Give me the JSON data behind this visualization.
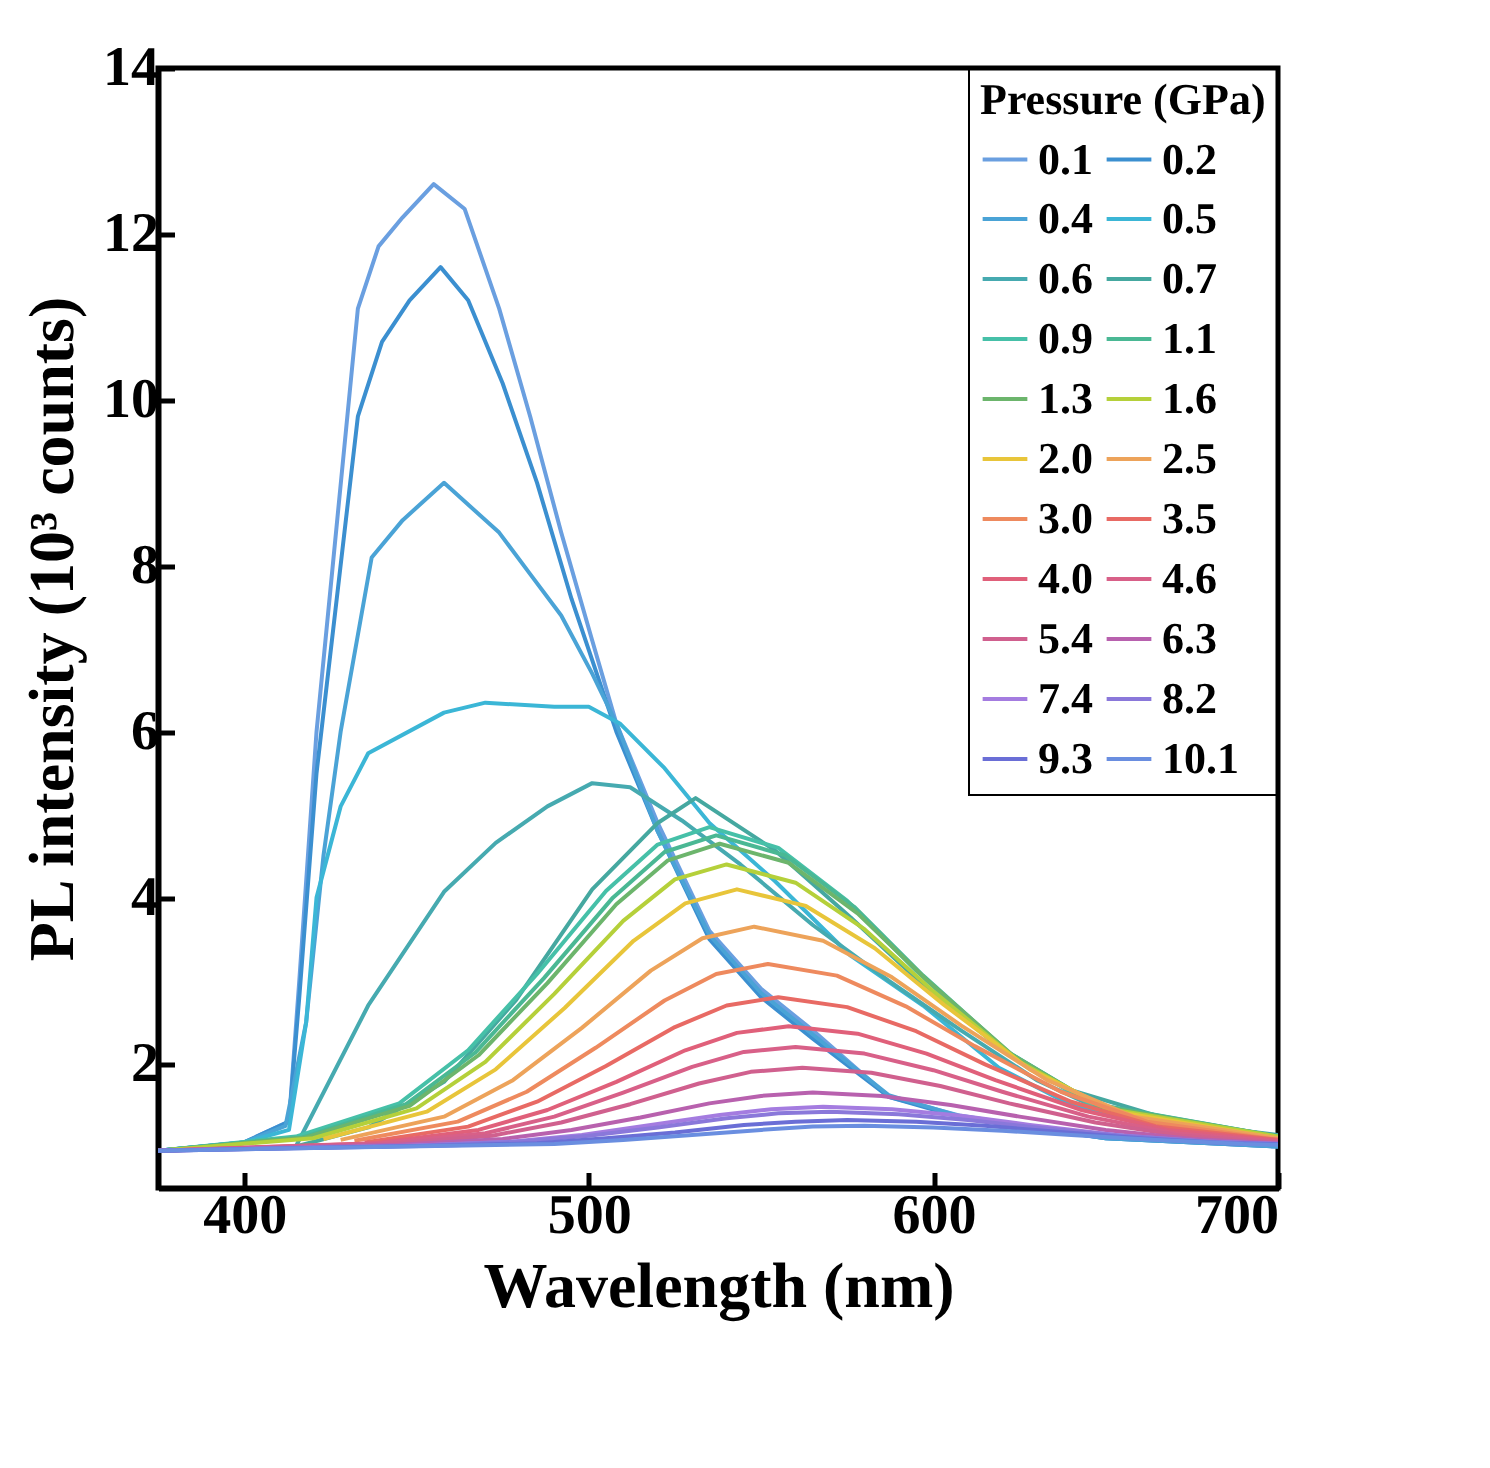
{
  "chart_data": {
    "type": "line",
    "xlabel": "Wavelength (nm)",
    "ylabel": "PL intensity (10³ counts)",
    "legend_title": "Pressure (GPa)",
    "legend": "top right",
    "grid": false,
    "xlim": [
      375,
      700
    ],
    "xticks": [
      400,
      500,
      600,
      700
    ],
    "ylim": [
      0.5,
      14
    ],
    "yticks": [
      2,
      4,
      6,
      8,
      10,
      12,
      14
    ],
    "series": [
      {
        "name": "0.1",
        "color": "#6a9fe0",
        "x": [
          375,
          400,
          413,
          416,
          421,
          433,
          439,
          446,
          455,
          464,
          474,
          483,
          492,
          501,
          508,
          520,
          535,
          550,
          565,
          587,
          608,
          650,
          700
        ],
        "values": [
          0.95,
          1.05,
          1.3,
          3.0,
          6.0,
          11.1,
          11.85,
          12.2,
          12.6,
          12.3,
          11.1,
          9.8,
          8.4,
          7.1,
          6.1,
          4.9,
          3.6,
          2.9,
          2.4,
          1.6,
          1.37,
          1.1,
          1.0
        ]
      },
      {
        "name": "0.2",
        "color": "#3b8fd0",
        "x": [
          375,
          400,
          413,
          416,
          421,
          433,
          440,
          448,
          457,
          465,
          475,
          485,
          495,
          508,
          520,
          535,
          550,
          565,
          587,
          608,
          650,
          700
        ],
        "values": [
          0.95,
          1.05,
          1.3,
          2.8,
          5.5,
          9.8,
          10.7,
          11.2,
          11.6,
          11.2,
          10.2,
          9.0,
          7.6,
          6.0,
          4.8,
          3.5,
          2.8,
          2.3,
          1.6,
          1.35,
          1.1,
          1.0
        ]
      },
      {
        "name": "0.4",
        "color": "#4aa3d6",
        "x": [
          375,
          400,
          412,
          418,
          423,
          428,
          437,
          446,
          458,
          474,
          483,
          492,
          501,
          508,
          520,
          535,
          550,
          565,
          587,
          608,
          650,
          700
        ],
        "values": [
          0.95,
          1.05,
          1.25,
          2.5,
          4.5,
          6.0,
          8.1,
          8.55,
          9.0,
          8.4,
          7.9,
          7.4,
          6.7,
          6.1,
          4.8,
          3.55,
          2.85,
          2.35,
          1.62,
          1.36,
          1.1,
          1.0
        ]
      },
      {
        "name": "0.5",
        "color": "#3bb6d6",
        "x": [
          375,
          400,
          413,
          418,
          421,
          428,
          436,
          458,
          470,
          490,
          500,
          509,
          522,
          535,
          554,
          576,
          597,
          619,
          640,
          672,
          700
        ],
        "values": [
          0.95,
          1.05,
          1.2,
          2.5,
          4.0,
          5.1,
          5.74,
          6.23,
          6.35,
          6.3,
          6.3,
          6.1,
          5.56,
          4.9,
          4.2,
          3.3,
          2.7,
          1.95,
          1.5,
          1.15,
          1.05
        ]
      },
      {
        "name": "0.6",
        "color": "#46aab0",
        "x": [
          375,
          415,
          436,
          458,
          473,
          488,
          501,
          512,
          527,
          544,
          565,
          587,
          608,
          630,
          651,
          700
        ],
        "values": [
          0.95,
          1.0,
          2.7,
          4.07,
          4.66,
          5.1,
          5.38,
          5.33,
          4.93,
          4.4,
          3.67,
          3.0,
          2.4,
          1.8,
          1.4,
          1.07
        ]
      },
      {
        "name": "0.7",
        "color": "#45a8a0",
        "x": [
          375,
          415,
          436,
          458,
          479,
          501,
          520,
          531,
          554,
          576,
          597,
          619,
          640,
          672,
          700
        ],
        "values": [
          0.95,
          1.0,
          1.23,
          1.78,
          2.77,
          4.1,
          4.9,
          5.2,
          4.57,
          3.76,
          2.95,
          2.2,
          1.68,
          1.28,
          1.14
        ]
      },
      {
        "name": "0.9",
        "color": "#46c0a8",
        "x": [
          375,
          415,
          445,
          465,
          485,
          505,
          520,
          535,
          555,
          575,
          595,
          620,
          645,
          700
        ],
        "values": [
          0.95,
          1.12,
          1.52,
          2.16,
          3.08,
          4.08,
          4.64,
          4.85,
          4.6,
          3.96,
          3.12,
          2.16,
          1.52,
          1.12
        ]
      },
      {
        "name": "1.1",
        "color": "#4ab894",
        "x": [
          375,
          417,
          447,
          467,
          487,
          507,
          522,
          537,
          557,
          577,
          597,
          622,
          647,
          700
        ],
        "values": [
          0.95,
          1.11,
          1.51,
          2.13,
          3.03,
          4.0,
          4.55,
          4.75,
          4.51,
          3.89,
          3.06,
          2.13,
          1.51,
          1.12
        ]
      },
      {
        "name": "1.3",
        "color": "#6cb56c",
        "x": [
          375,
          418,
          448,
          468,
          488,
          508,
          523,
          538,
          558,
          578,
          598,
          623,
          648,
          700
        ],
        "values": [
          0.95,
          1.11,
          1.49,
          2.1,
          2.97,
          3.92,
          4.45,
          4.65,
          4.42,
          3.81,
          3.01,
          2.1,
          1.49,
          1.12
        ]
      },
      {
        "name": "1.6",
        "color": "#b5d03a",
        "x": [
          375,
          420,
          450,
          470,
          490,
          510,
          525,
          540,
          560,
          580,
          600,
          625,
          650,
          700
        ],
        "values": [
          0.95,
          1.1,
          1.46,
          2.02,
          2.84,
          3.72,
          4.22,
          4.4,
          4.18,
          3.62,
          2.87,
          2.02,
          1.46,
          1.12
        ]
      },
      {
        "name": "2.0",
        "color": "#e8c53a",
        "x": [
          423,
          453,
          473,
          493,
          513,
          528,
          543,
          563,
          583,
          603,
          628,
          653,
          700
        ],
        "values": [
          1.09,
          1.42,
          1.93,
          2.67,
          3.48,
          3.93,
          4.1,
          3.9,
          3.39,
          2.71,
          1.93,
          1.42,
          1.1
        ]
      },
      {
        "name": "2.5",
        "color": "#eda35a",
        "x": [
          428,
          458,
          478,
          498,
          518,
          533,
          548,
          568,
          588,
          608,
          633,
          658,
          700
        ],
        "values": [
          1.08,
          1.36,
          1.8,
          2.43,
          3.12,
          3.51,
          3.65,
          3.48,
          3.04,
          2.46,
          1.8,
          1.36,
          1.1
        ]
      },
      {
        "name": "3.0",
        "color": "#ee8a5e",
        "x": [
          432,
          462,
          482,
          502,
          522,
          537,
          552,
          572,
          592,
          612,
          637,
          662,
          700
        ],
        "values": [
          1.07,
          1.3,
          1.66,
          2.19,
          2.76,
          3.08,
          3.2,
          3.06,
          2.69,
          2.21,
          1.66,
          1.3,
          1.08
        ]
      },
      {
        "name": "3.5",
        "color": "#e86a64",
        "x": [
          435,
          465,
          485,
          505,
          525,
          540,
          555,
          575,
          595,
          615,
          640,
          665,
          700
        ],
        "values": [
          1.05,
          1.24,
          1.54,
          1.97,
          2.44,
          2.7,
          2.8,
          2.68,
          2.39,
          1.99,
          1.54,
          1.24,
          1.08
        ]
      },
      {
        "name": "4.0",
        "color": "#e0607a",
        "x": [
          375,
          438,
          468,
          488,
          508,
          528,
          543,
          558,
          578,
          598,
          618,
          643,
          668,
          700
        ],
        "values": [
          0.95,
          1.04,
          1.2,
          1.44,
          1.78,
          2.16,
          2.37,
          2.45,
          2.36,
          2.12,
          1.8,
          1.44,
          1.2,
          1.07
        ]
      },
      {
        "name": "4.6",
        "color": "#d86088",
        "x": [
          375,
          440,
          470,
          490,
          510,
          530,
          545,
          560,
          580,
          600,
          620,
          645,
          670,
          700
        ],
        "values": [
          0.95,
          1.04,
          1.16,
          1.36,
          1.65,
          1.96,
          2.14,
          2.2,
          2.12,
          1.92,
          1.66,
          1.36,
          1.16,
          1.06
        ]
      },
      {
        "name": "5.4",
        "color": "#d0608e",
        "x": [
          375,
          442,
          472,
          492,
          512,
          532,
          547,
          562,
          582,
          602,
          622,
          647,
          672,
          700
        ],
        "values": [
          0.95,
          1.03,
          1.13,
          1.29,
          1.51,
          1.76,
          1.9,
          1.95,
          1.89,
          1.73,
          1.52,
          1.29,
          1.13,
          1.05
        ]
      },
      {
        "name": "6.3",
        "color": "#b861ae",
        "x": [
          375,
          445,
          475,
          495,
          515,
          535,
          550,
          565,
          585,
          605,
          625,
          650,
          675,
          700
        ],
        "values": [
          0.95,
          1.02,
          1.09,
          1.2,
          1.35,
          1.52,
          1.61,
          1.65,
          1.61,
          1.5,
          1.36,
          1.2,
          1.09,
          1.04
        ]
      },
      {
        "name": "7.4",
        "color": "#a47ce0",
        "x": [
          375,
          448,
          478,
          498,
          518,
          538,
          553,
          568,
          588,
          608,
          628,
          653,
          678,
          700
        ],
        "values": [
          0.95,
          1.01,
          1.06,
          1.14,
          1.26,
          1.38,
          1.45,
          1.48,
          1.45,
          1.37,
          1.26,
          1.14,
          1.06,
          1.03
        ]
      },
      {
        "name": "8.2",
        "color": "#8a78da",
        "x": [
          375,
          450,
          480,
          500,
          520,
          540,
          555,
          570,
          590,
          610,
          630,
          655,
          680,
          700
        ],
        "values": [
          0.95,
          1.01,
          1.06,
          1.13,
          1.23,
          1.34,
          1.4,
          1.42,
          1.39,
          1.32,
          1.23,
          1.13,
          1.06,
          1.03
        ]
      },
      {
        "name": "9.3",
        "color": "#6a6ed6",
        "x": [
          375,
          455,
          485,
          505,
          525,
          545,
          560,
          575,
          595,
          615,
          635,
          660,
          685,
          700
        ],
        "values": [
          0.95,
          1.01,
          1.04,
          1.1,
          1.17,
          1.26,
          1.3,
          1.32,
          1.3,
          1.25,
          1.18,
          1.1,
          1.04,
          1.03
        ]
      },
      {
        "name": "10.1",
        "color": "#6a8ee0",
        "x": [
          375,
          460,
          490,
          510,
          530,
          550,
          565,
          580,
          600,
          620,
          640,
          665,
          690,
          700
        ],
        "values": [
          0.95,
          1.01,
          1.03,
          1.08,
          1.14,
          1.2,
          1.24,
          1.25,
          1.23,
          1.19,
          1.14,
          1.08,
          1.03,
          1.02
        ]
      }
    ]
  }
}
